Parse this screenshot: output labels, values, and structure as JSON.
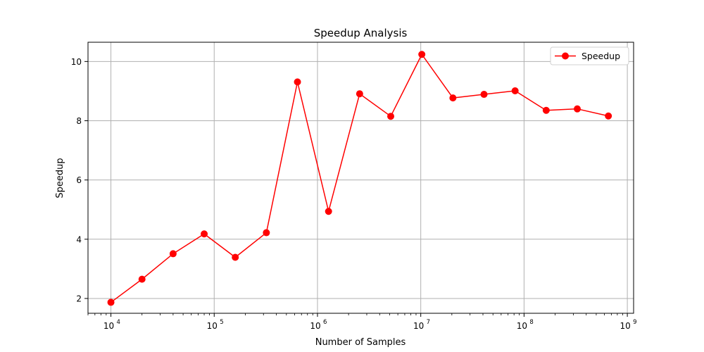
{
  "chart_data": {
    "type": "line",
    "title": "Speedup Analysis",
    "xlabel": "Number of Samples",
    "ylabel": "Speedup",
    "x_scale": "log",
    "xlim": [
      6000,
      1150000000
    ],
    "ylim": [
      1.5,
      10.65
    ],
    "x_ticks": [
      {
        "value": 10000,
        "base": "10",
        "exp": "4"
      },
      {
        "value": 100000,
        "base": "10",
        "exp": "5"
      },
      {
        "value": 1000000,
        "base": "10",
        "exp": "6"
      },
      {
        "value": 10000000,
        "base": "10",
        "exp": "7"
      },
      {
        "value": 100000000,
        "base": "10",
        "exp": "8"
      },
      {
        "value": 1000000000,
        "base": "10",
        "exp": "9"
      }
    ],
    "y_ticks": [
      {
        "value": 2,
        "label": "2"
      },
      {
        "value": 4,
        "label": "4"
      },
      {
        "value": 6,
        "label": "6"
      },
      {
        "value": 8,
        "label": "8"
      },
      {
        "value": 10,
        "label": "10"
      }
    ],
    "grid": true,
    "legend_position": "top-right",
    "series": [
      {
        "name": "Speedup",
        "color": "#ff0000",
        "marker": "circle",
        "x": [
          10000,
          20000,
          40000,
          80000,
          160000,
          320000,
          640000,
          1280000,
          2560000,
          5120000,
          10240000,
          20480000,
          40960000,
          81920000,
          163840000,
          327680000,
          655360000
        ],
        "y": [
          1.87,
          2.65,
          3.51,
          4.18,
          3.39,
          4.22,
          9.31,
          4.94,
          8.91,
          8.15,
          10.24,
          8.77,
          8.89,
          9.01,
          8.35,
          8.4,
          8.16
        ]
      }
    ]
  }
}
